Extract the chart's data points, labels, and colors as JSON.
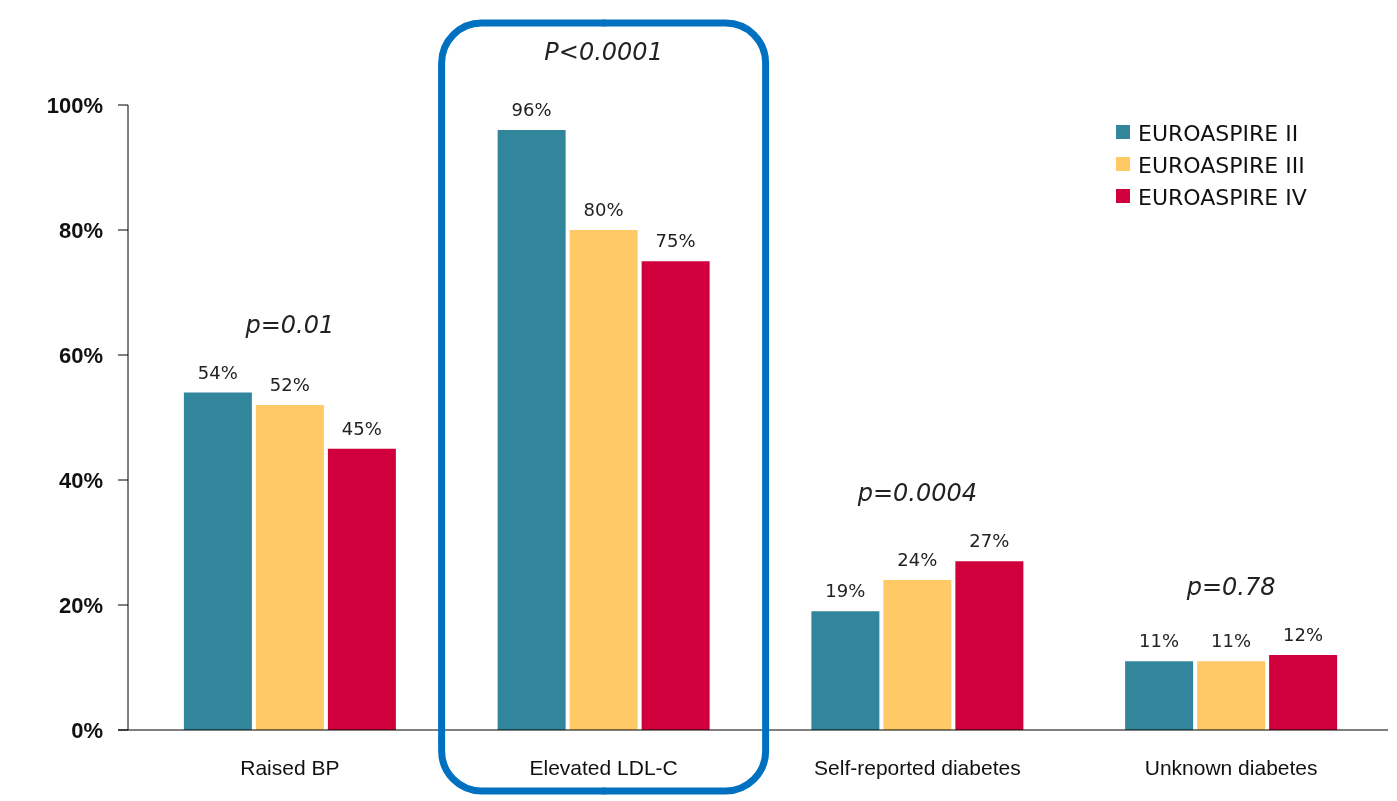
{
  "chart_data": {
    "type": "bar",
    "categories": [
      "Raised BP",
      "Elevated LDL-C",
      "Self-reported diabetes",
      "Unknown diabetes"
    ],
    "series": [
      {
        "name": "EUROASPIRE II",
        "color": "#32869b",
        "values": [
          54,
          96,
          19,
          11
        ],
        "value_labels": [
          "54%",
          "96%",
          "19%",
          "11%"
        ]
      },
      {
        "name": "EUROASPIRE III",
        "color": "#ffc966",
        "values": [
          52,
          80,
          24,
          11
        ],
        "value_labels": [
          "52%",
          "80%",
          "24%",
          "11%"
        ]
      },
      {
        "name": "EUROASPIRE IV",
        "color": "#d0003c",
        "values": [
          45,
          75,
          27,
          12
        ],
        "value_labels": [
          "45%",
          "75%",
          "27%",
          "12%"
        ]
      }
    ],
    "ylim": [
      0,
      100
    ],
    "yticks": [
      {
        "value": 0,
        "label": "0%"
      },
      {
        "value": 20,
        "label": "20%"
      },
      {
        "value": 40,
        "label": "40%"
      },
      {
        "value": 60,
        "label": "60%"
      },
      {
        "value": 80,
        "label": "80%"
      },
      {
        "value": 100,
        "label": "100%"
      }
    ],
    "annotations": [
      "p=0.01",
      "P<0.0001",
      "p=0.0004",
      "p=0.78"
    ],
    "legend": "top right",
    "grid": false
  }
}
